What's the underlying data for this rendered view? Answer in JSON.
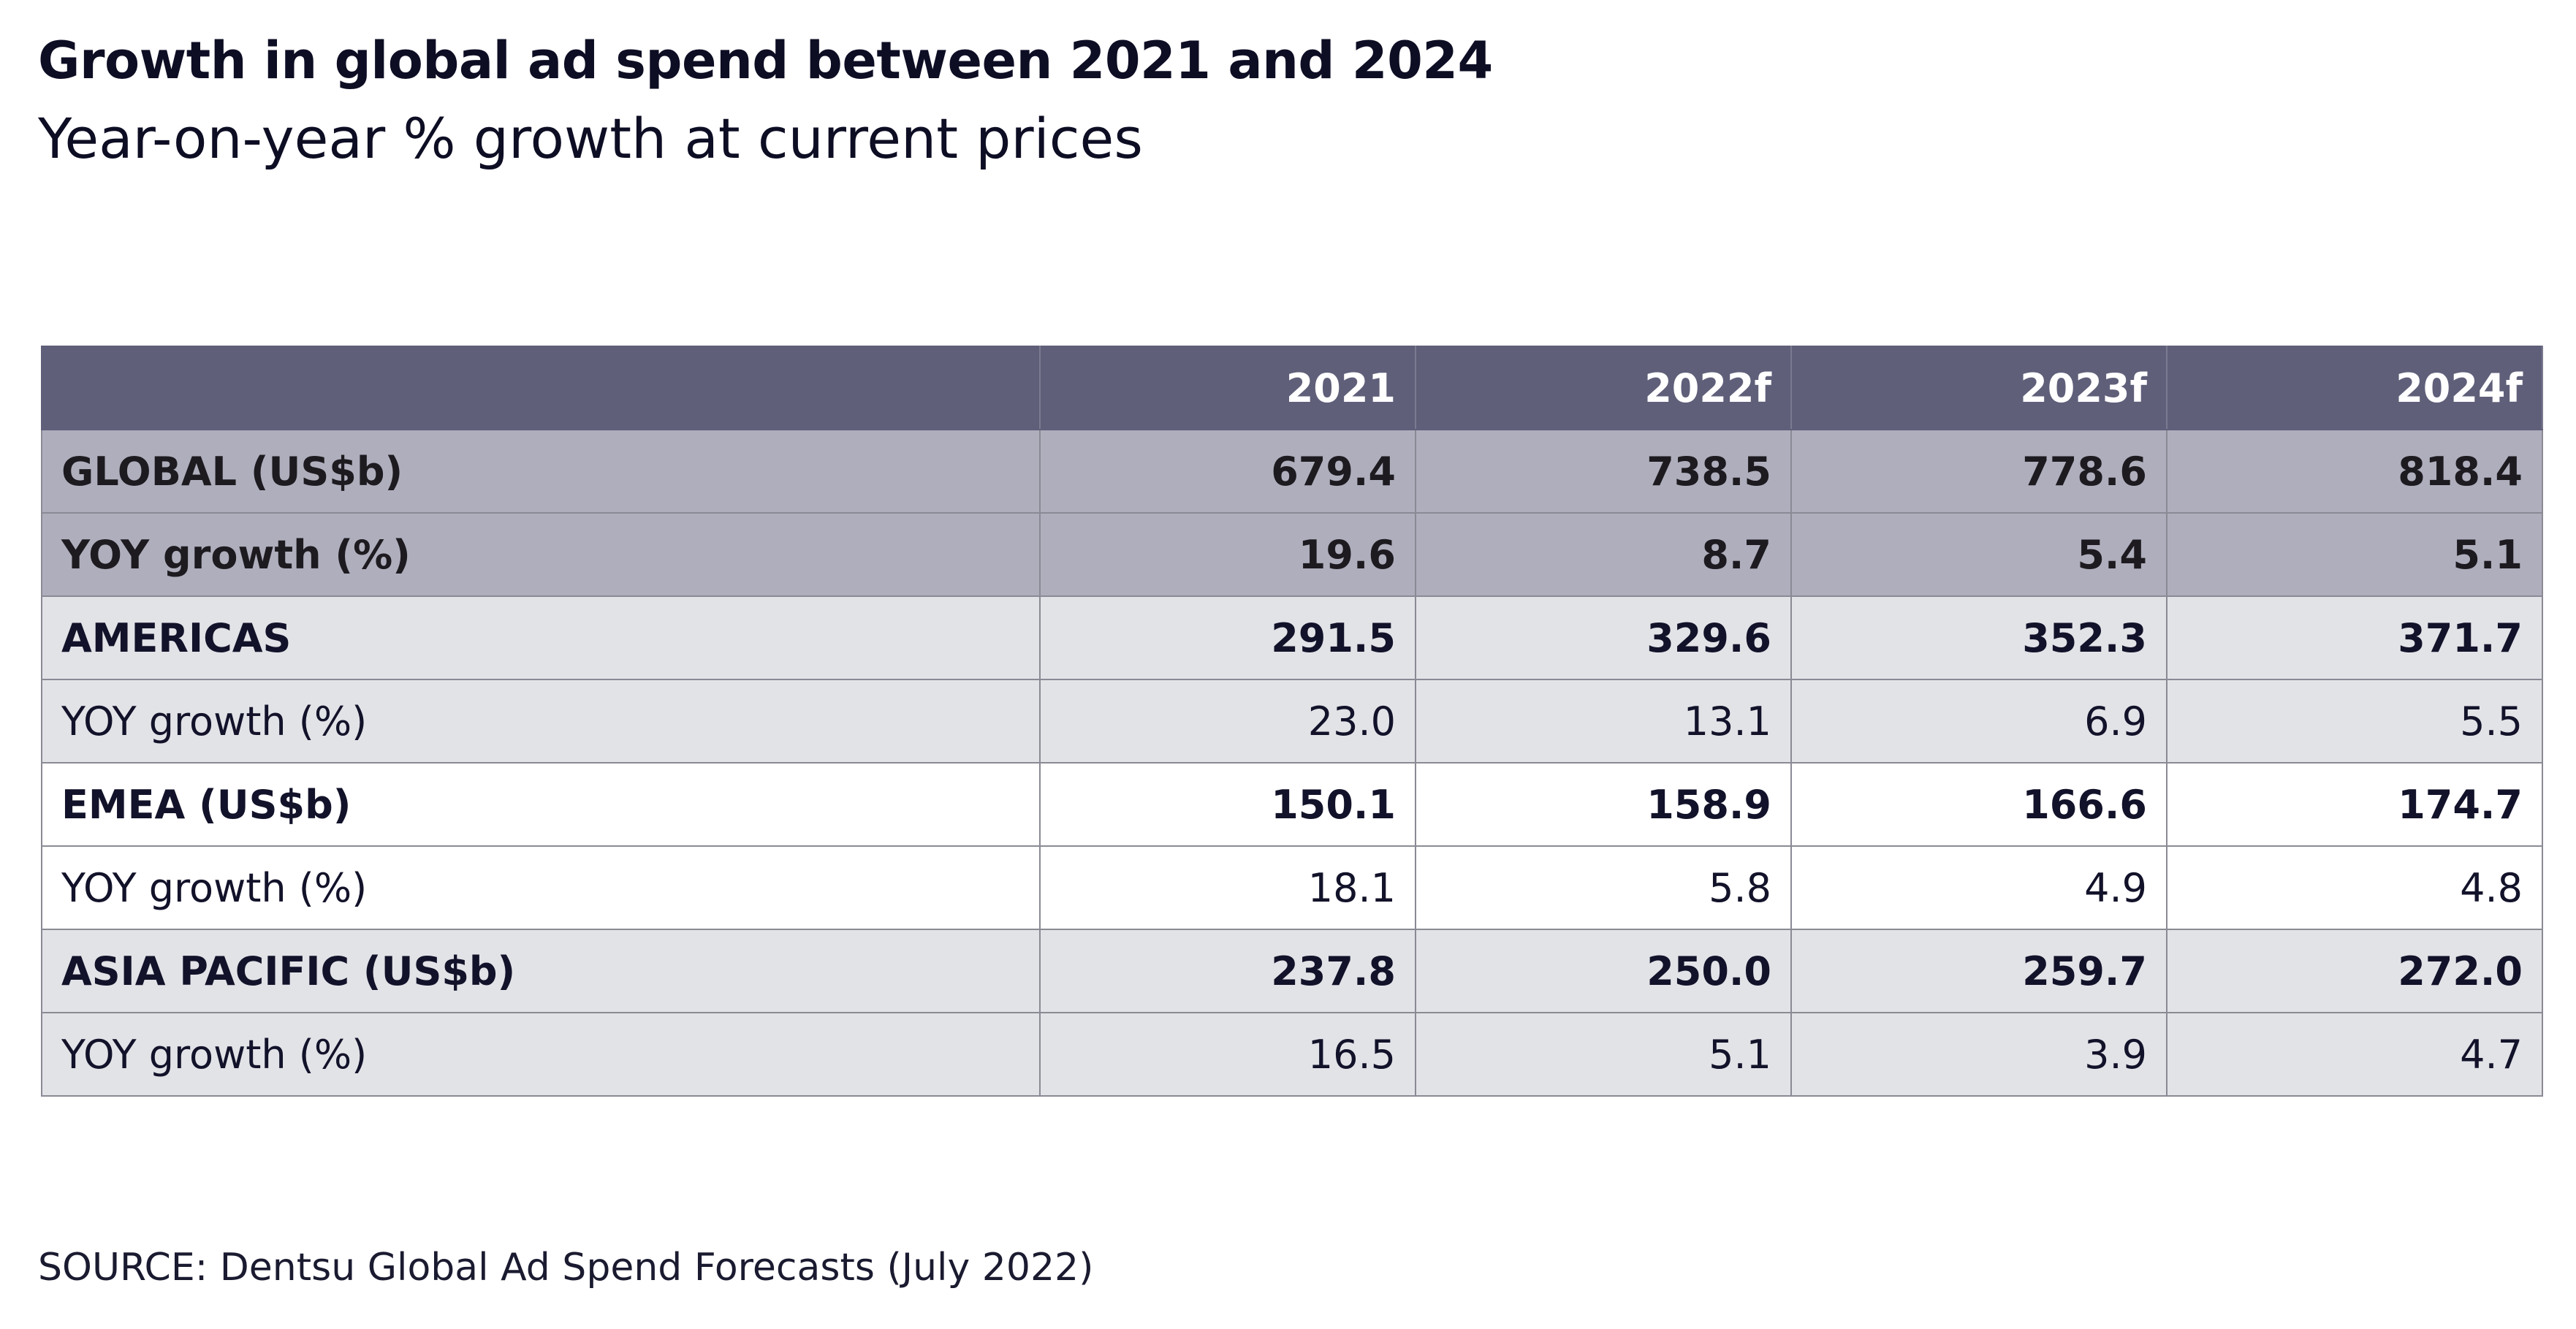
{
  "title": "Growth in global ad spend between 2021 and 2024",
  "subtitle": "Year-on-year % growth at current prices",
  "table": {
    "headers": [
      "",
      "2021",
      "2022f",
      "2023f",
      "2024f"
    ],
    "rows": [
      {
        "label": "GLOBAL (US$b)",
        "values": [
          "679.4",
          "738.5",
          "778.6",
          "818.4"
        ]
      },
      {
        "label": "YOY growth (%)",
        "values": [
          "19.6",
          "8.7",
          "5.4",
          "5.1"
        ]
      },
      {
        "label": "AMERICAS",
        "values": [
          "291.5",
          "329.6",
          "352.3",
          "371.7"
        ]
      },
      {
        "label": "YOY growth (%)",
        "values": [
          "23.0",
          "13.1",
          "6.9",
          "5.5"
        ]
      },
      {
        "label": "EMEA (US$b)",
        "values": [
          "150.1",
          "158.9",
          "166.6",
          "174.7"
        ]
      },
      {
        "label": "YOY growth (%)",
        "values": [
          "18.1",
          "5.8",
          "4.9",
          "4.8"
        ]
      },
      {
        "label": "ASIA PACIFIC (US$b)",
        "values": [
          "237.8",
          "250.0",
          "259.7",
          "272.0"
        ]
      },
      {
        "label": "YOY growth (%)",
        "values": [
          "16.5",
          "5.1",
          "3.9",
          "4.7"
        ]
      }
    ]
  },
  "colors": {
    "header": "#5f5f7a",
    "global_rows": "#afaebd",
    "shaded_rows": "#e2e3e7",
    "white_rows": "#ffffff"
  },
  "source": "SOURCE: Dentsu Global Ad Spend Forecasts (July 2022)"
}
